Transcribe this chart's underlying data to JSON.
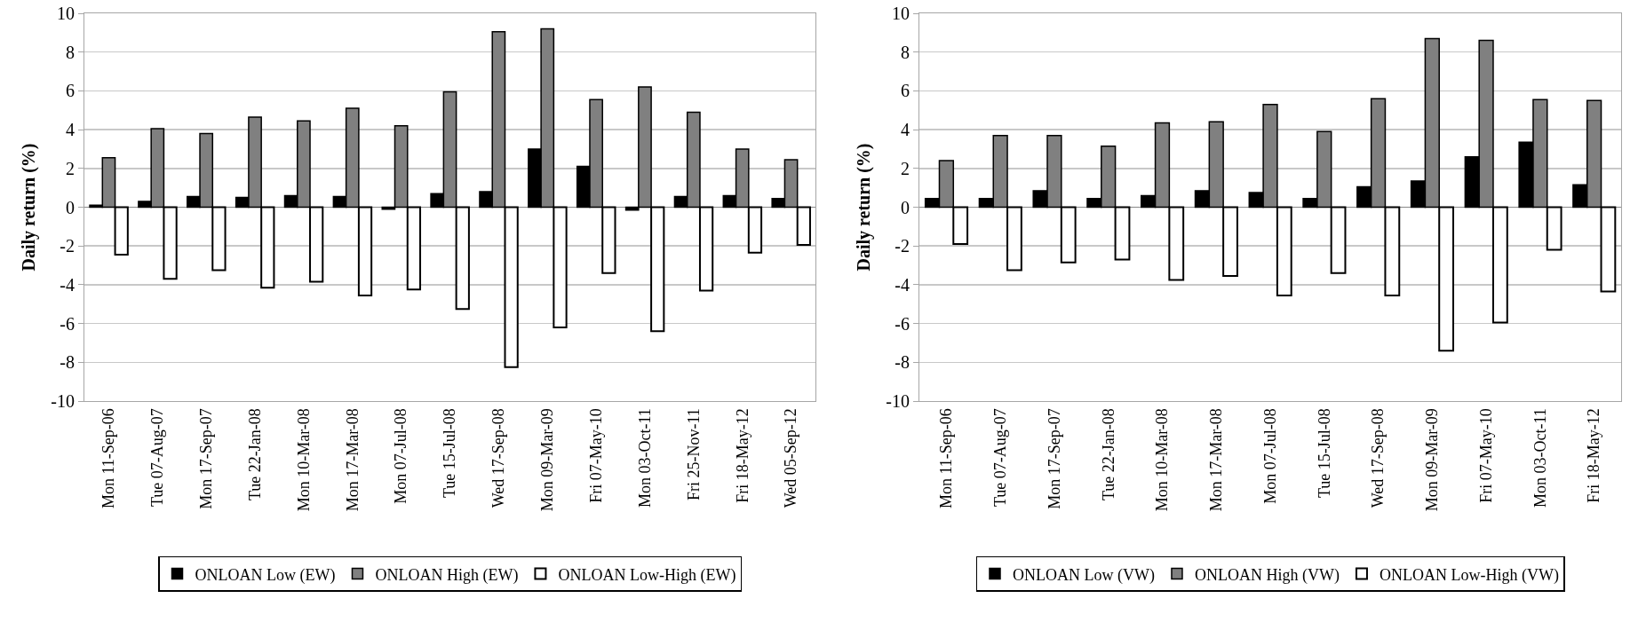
{
  "chart_data": [
    {
      "type": "bar",
      "ylabel": "Daily return (%)",
      "categories": [
        "Mon 11-Sep-06",
        "Tue 07-Aug-07",
        "Mon 17-Sep-07",
        "Tue 22-Jan-08",
        "Mon 10-Mar-08",
        "Mon 17-Mar-08",
        "Mon 07-Jul-08",
        "Tue 15-Jul-08",
        "Wed 17-Sep-08",
        "Mon 09-Mar-09",
        "Fri 07-May-10",
        "Mon 03-Oct-11",
        "Fri 25-Nov-11",
        "Fri 18-May-12",
        "Wed 05-Sep-12"
      ],
      "series": [
        {
          "name": "ONLOAN Low (EW)",
          "color": "#000000",
          "values": [
            0.1,
            0.3,
            0.55,
            0.5,
            0.6,
            0.55,
            -0.1,
            0.7,
            0.8,
            3.0,
            2.1,
            -0.15,
            0.55,
            0.6,
            0.45
          ]
        },
        {
          "name": "ONLOAN High (EW)",
          "color": "#808080",
          "values": [
            2.55,
            4.05,
            3.8,
            4.65,
            4.45,
            5.1,
            4.2,
            5.95,
            9.05,
            9.2,
            5.55,
            6.2,
            4.9,
            3.0,
            2.45
          ]
        },
        {
          "name": "ONLOAN Low-High (EW)",
          "color": "#ffffff",
          "values": [
            -2.45,
            -3.7,
            -3.25,
            -4.15,
            -3.85,
            -4.55,
            -4.25,
            -5.25,
            -8.25,
            -6.2,
            -3.4,
            -6.4,
            -4.3,
            -2.35,
            -1.95
          ]
        }
      ],
      "ylim": [
        -10,
        10
      ],
      "yticks": [
        -10,
        -8,
        -6,
        -4,
        -2,
        0,
        2,
        4,
        6,
        8,
        10
      ],
      "grid": "y",
      "legend": "bottom"
    },
    {
      "type": "bar",
      "ylabel": "Daily return (%)",
      "categories": [
        "Mon 11-Sep-06",
        "Tue 07-Aug-07",
        "Mon 17-Sep-07",
        "Tue 22-Jan-08",
        "Mon 10-Mar-08",
        "Mon 17-Mar-08",
        "Mon 07-Jul-08",
        "Tue 15-Jul-08",
        "Wed 17-Sep-08",
        "Mon 09-Mar-09",
        "Fri 07-May-10",
        "Mon 03-Oct-11",
        "Fri 18-May-12"
      ],
      "series": [
        {
          "name": "ONLOAN Low (VW)",
          "color": "#000000",
          "values": [
            0.45,
            0.45,
            0.85,
            0.45,
            0.6,
            0.85,
            0.75,
            0.45,
            1.05,
            1.35,
            2.6,
            3.35,
            1.15
          ]
        },
        {
          "name": "ONLOAN High (VW)",
          "color": "#808080",
          "values": [
            2.4,
            3.7,
            3.7,
            3.15,
            4.35,
            4.4,
            5.3,
            3.9,
            5.6,
            8.7,
            8.6,
            5.55,
            5.5
          ]
        },
        {
          "name": "ONLOAN Low-High (VW)",
          "color": "#ffffff",
          "values": [
            -1.9,
            -3.25,
            -2.85,
            -2.7,
            -3.75,
            -3.55,
            -4.55,
            -3.4,
            -4.55,
            -7.4,
            -5.95,
            -2.2,
            -4.35
          ]
        }
      ],
      "ylim": [
        -10,
        10
      ],
      "yticks": [
        -10,
        -8,
        -6,
        -4,
        -2,
        0,
        2,
        4,
        6,
        8,
        10
      ],
      "grid": "y",
      "legend": "bottom"
    }
  ]
}
